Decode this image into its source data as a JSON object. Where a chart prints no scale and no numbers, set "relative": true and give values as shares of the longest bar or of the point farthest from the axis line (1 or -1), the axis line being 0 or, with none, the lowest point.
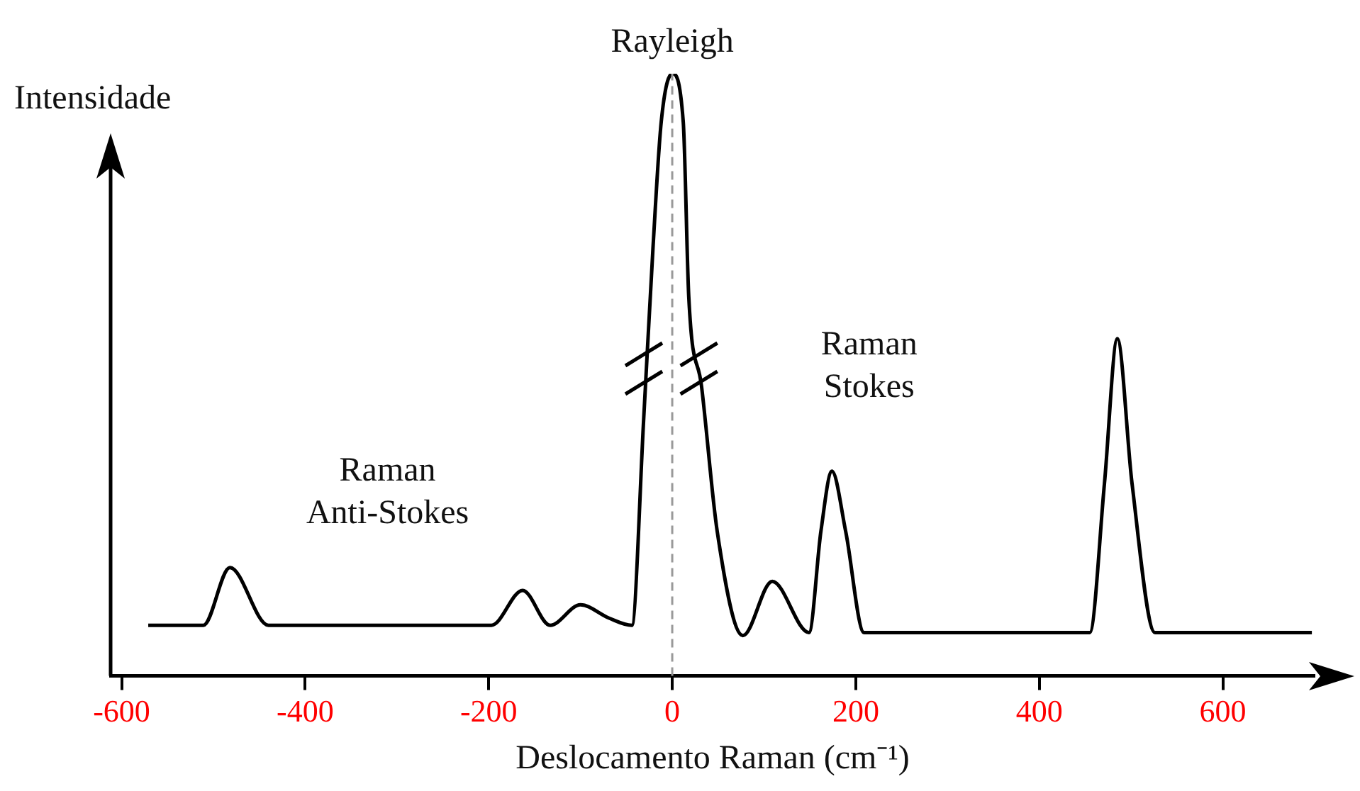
{
  "chart_data": {
    "type": "line",
    "relative": true,
    "xlabel": "Deslocamento Raman (cm⁻¹)",
    "ylabel": "Intensidade",
    "xlim": [
      -612,
      700
    ],
    "xticks": [
      -600,
      -400,
      -200,
      0,
      200,
      400,
      600
    ],
    "tick_labels": "x",
    "grid": false,
    "legend": false,
    "marker": "none",
    "line_style": "solid",
    "x": [
      -571,
      -511,
      -482,
      -440,
      -197,
      -163,
      -133,
      -100,
      -69,
      -44,
      -31,
      -21,
      -12,
      0,
      12,
      18,
      32,
      49,
      77,
      109,
      149,
      162,
      174,
      189,
      209,
      455,
      471,
      485,
      501,
      526,
      697
    ],
    "series": [
      {
        "color": "#000000",
        "values": [
          0.084,
          0.084,
          0.18,
          0.084,
          0.084,
          0.142,
          0.084,
          0.118,
          0.096,
          0.084,
          0.43,
          0.71,
          0.92,
          1,
          0.92,
          0.63,
          0.48,
          0.24,
          0.067,
          0.157,
          0.072,
          0.24,
          0.34,
          0.24,
          0.072,
          0.072,
          0.32,
          0.56,
          0.32,
          0.072,
          0.072
        ]
      }
    ],
    "ref_lines": [
      {
        "axis": "x",
        "value": 0,
        "color": "#999999",
        "line_style": "dashed"
      }
    ],
    "annotations": [
      {
        "text": "Rayleigh",
        "x": 0,
        "y": 1
      },
      "Raman\nStokes",
      "Raman\nAnti-Stokes"
    ]
  }
}
